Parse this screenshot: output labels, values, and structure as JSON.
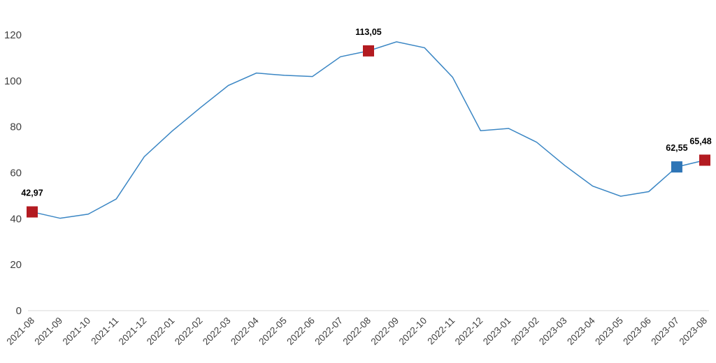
{
  "chart_data": {
    "type": "line",
    "title": "",
    "xlabel": "",
    "ylabel": "",
    "ylim": [
      0,
      120
    ],
    "yticks": [
      "0",
      "20",
      "40",
      "60",
      "80",
      "100",
      "120"
    ],
    "grid": false,
    "legend": "none",
    "colors": {
      "line": "#3a86c4",
      "marker_default": "#b31b21",
      "marker_highlight": "#2e75b6",
      "axis": "#d9d9d9"
    },
    "categories": [
      "2021-08",
      "2021-09",
      "2021-10",
      "2021-11",
      "2021-12",
      "2022-01",
      "2022-02",
      "2022-03",
      "2022-04",
      "2022-05",
      "2022-06",
      "2022-07",
      "2022-08",
      "2022-09",
      "2022-10",
      "2022-11",
      "2022-12",
      "2023-01",
      "2023-02",
      "2023-03",
      "2023-04",
      "2023-05",
      "2023-06",
      "2023-07",
      "2023-08"
    ],
    "series": [
      {
        "values": [
          42.97,
          40.2,
          42.0,
          48.6,
          67.0,
          78.2,
          88.3,
          98.0,
          103.4,
          102.4,
          101.9,
          110.5,
          113.05,
          117.0,
          114.4,
          101.6,
          78.3,
          79.3,
          73.3,
          63.2,
          54.2,
          49.8,
          51.8,
          62.55,
          65.48
        ]
      }
    ],
    "annotations": [
      {
        "category": "2021-08",
        "value": 42.97,
        "label": "42,97",
        "color": "marker_default"
      },
      {
        "category": "2022-08",
        "value": 113.05,
        "label": "113,05",
        "color": "marker_default"
      },
      {
        "category": "2023-07",
        "value": 62.55,
        "label": "62,55",
        "color": "marker_highlight"
      },
      {
        "category": "2023-08",
        "value": 65.48,
        "label": "65,48",
        "color": "marker_default"
      }
    ]
  }
}
